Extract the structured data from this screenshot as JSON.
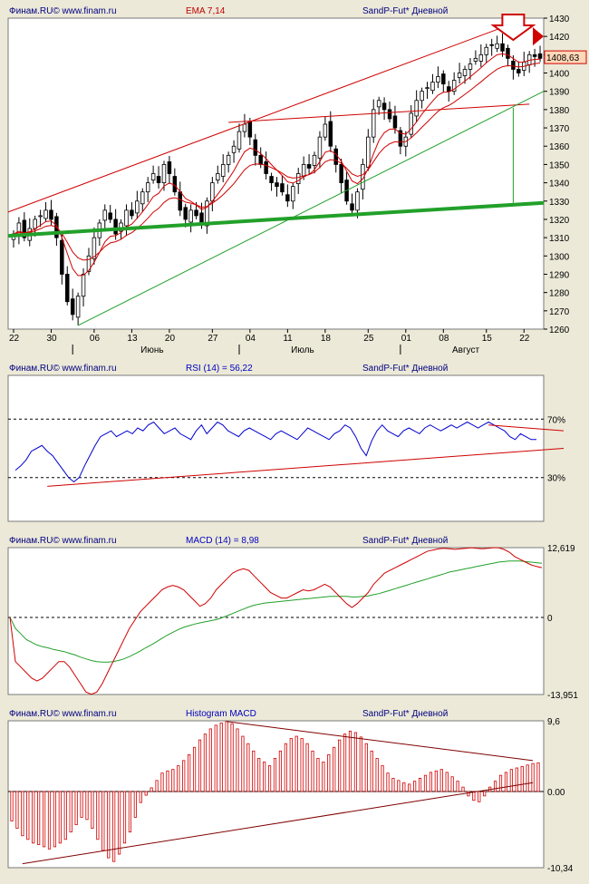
{
  "theme": {
    "panel_bg": "#ece9d8",
    "plot_bg": "#ffffff",
    "axis": "#000000",
    "candle": "#000000",
    "red_line": "#d00000",
    "green_line": "#22a02a",
    "blue_line": "#0000d0",
    "label_dark": "#000080",
    "label_red": "#c00000",
    "label_blue": "#0000c0",
    "price_tag_bg": "#ffd8b8",
    "arrow_fill": "#ffffff"
  },
  "panels": {
    "price": {
      "provider": "Финам.RU© www.finam.ru",
      "indicator": "EMA 7,14",
      "instrument": "SandP-Fut* Дневной",
      "y_ticks": [
        1430,
        1420,
        1410,
        1400,
        1390,
        1380,
        1370,
        1360,
        1350,
        1340,
        1330,
        1320,
        1310,
        1300,
        1290,
        1280,
        1270,
        1260
      ],
      "last_price": "1408,63",
      "day_labels": [
        "22",
        "30",
        "06",
        "13",
        "20",
        "27",
        "04",
        "11",
        "18",
        "25",
        "01",
        "08",
        "15",
        "22"
      ],
      "month_labels": [
        "Июнь",
        "Июль",
        "Август"
      ]
    },
    "rsi": {
      "provider": "Финам.RU© www.finam.ru",
      "indicator": "RSI (14) = 56,22",
      "instrument": "SandP-Fut* Дневной",
      "levels": [
        "70%",
        "30%"
      ]
    },
    "macd": {
      "provider": "Финам.RU© www.finam.ru",
      "indicator": "MACD (14) = 8,98",
      "instrument": "SandP-Fut* Дневной",
      "labels": [
        "12,619",
        "0",
        "-13,951"
      ]
    },
    "hist": {
      "provider": "Финам.RU© www.finam.ru",
      "indicator": "Histogram MACD",
      "instrument": "SandP-Fut* Дневной",
      "labels": [
        "9,6",
        "0.00",
        "-10,34"
      ]
    }
  },
  "chart_data": [
    {
      "type": "candlestick",
      "day_ticks": [
        "22",
        "30",
        "06",
        "13",
        "20",
        "27",
        "04",
        "11",
        "18",
        "25",
        "01",
        "08",
        "15",
        "22"
      ],
      "months": [
        "Июнь",
        "Июль",
        "Август"
      ],
      "ylim": [
        1260,
        1430
      ],
      "close": [
        1312,
        1318,
        1310,
        1315,
        1320,
        1322,
        1325,
        1320,
        1310,
        1290,
        1275,
        1268,
        1278,
        1290,
        1300,
        1310,
        1318,
        1325,
        1320,
        1312,
        1318,
        1325,
        1322,
        1330,
        1335,
        1340,
        1345,
        1340,
        1350,
        1345,
        1335,
        1325,
        1320,
        1325,
        1322,
        1318,
        1330,
        1340,
        1345,
        1350,
        1355,
        1360,
        1368,
        1372,
        1365,
        1355,
        1350,
        1345,
        1340,
        1338,
        1335,
        1330,
        1338,
        1345,
        1350,
        1348,
        1355,
        1365,
        1372,
        1360,
        1350,
        1340,
        1330,
        1325,
        1335,
        1350,
        1365,
        1380,
        1385,
        1380,
        1375,
        1370,
        1360,
        1365,
        1378,
        1385,
        1390,
        1392,
        1395,
        1398,
        1394,
        1390,
        1396,
        1400,
        1402,
        1405,
        1408,
        1410,
        1414,
        1415,
        1416,
        1412,
        1408,
        1402,
        1400,
        1406,
        1410,
        1409,
        1408
      ],
      "ema_fast_label": "EMA 7",
      "ema_slow_label": "EMA 14",
      "last": 1408.63
    },
    {
      "type": "line",
      "ylim": [
        0,
        100
      ],
      "levels": [
        70,
        30
      ],
      "values": [
        35,
        38,
        42,
        48,
        50,
        52,
        48,
        45,
        40,
        35,
        30,
        27,
        30,
        38,
        45,
        52,
        58,
        60,
        62,
        58,
        60,
        62,
        60,
        64,
        62,
        66,
        68,
        64,
        60,
        62,
        64,
        60,
        58,
        56,
        62,
        66,
        60,
        64,
        68,
        66,
        62,
        60,
        58,
        62,
        64,
        62,
        60,
        58,
        56,
        60,
        62,
        60,
        58,
        56,
        60,
        64,
        62,
        60,
        58,
        56,
        60,
        62,
        66,
        64,
        58,
        50,
        45,
        55,
        62,
        66,
        62,
        60,
        58,
        62,
        64,
        62,
        60,
        64,
        66,
        64,
        62,
        64,
        66,
        64,
        66,
        68,
        66,
        64,
        66,
        68,
        66,
        64,
        62,
        58,
        56,
        60,
        58,
        56,
        56
      ]
    },
    {
      "type": "line",
      "ylim": [
        -13.951,
        12.619
      ],
      "macd": [
        0,
        -8,
        -9,
        -10,
        -11,
        -11.5,
        -11,
        -10,
        -9,
        -8,
        -8,
        -9,
        -10.5,
        -12,
        -13.5,
        -13.9,
        -13.5,
        -12,
        -10,
        -8,
        -6,
        -4,
        -2,
        -0.5,
        1,
        2,
        3,
        4,
        5,
        5.5,
        5.8,
        5.5,
        5,
        4,
        3,
        2,
        2.5,
        3.5,
        5,
        6,
        7,
        8,
        8.5,
        8.8,
        8.5,
        7.5,
        6.5,
        5.5,
        4.5,
        4,
        3.5,
        3.5,
        4,
        4.5,
        5,
        4.8,
        5,
        5.5,
        6,
        5.5,
        4.5,
        3.5,
        2.5,
        1.8,
        2.5,
        3.5,
        4.5,
        6,
        7,
        8,
        8.5,
        9,
        9.5,
        10,
        10.5,
        11,
        11.5,
        12,
        12.2,
        12.4,
        12.5,
        12.4,
        12.3,
        12.4,
        12.5,
        12.6,
        12.5,
        12.4,
        12.5,
        12.6,
        12.6,
        12.3,
        11.8,
        11,
        10.5,
        10,
        9.5,
        9.2,
        9
      ],
      "signal": [
        0,
        -2,
        -3,
        -4,
        -4.5,
        -5,
        -5.3,
        -5.5,
        -5.8,
        -6,
        -6.2,
        -6.5,
        -6.8,
        -7.2,
        -7.5,
        -7.8,
        -8,
        -8.1,
        -8.1,
        -8,
        -7.8,
        -7.5,
        -7.1,
        -6.6,
        -6.1,
        -5.5,
        -5,
        -4.4,
        -3.8,
        -3.2,
        -2.7,
        -2.2,
        -1.8,
        -1.5,
        -1.2,
        -1,
        -0.8,
        -0.6,
        -0.4,
        -0.1,
        0.3,
        0.7,
        1.1,
        1.5,
        1.9,
        2.2,
        2.4,
        2.6,
        2.7,
        2.8,
        2.9,
        3,
        3.1,
        3.2,
        3.3,
        3.4,
        3.5,
        3.6,
        3.7,
        3.8,
        3.8,
        3.8,
        3.8,
        3.7,
        3.7,
        3.8,
        3.9,
        4.1,
        4.3,
        4.6,
        4.9,
        5.2,
        5.5,
        5.8,
        6.1,
        6.4,
        6.7,
        7,
        7.3,
        7.6,
        7.9,
        8.2,
        8.4,
        8.6,
        8.8,
        9,
        9.2,
        9.4,
        9.6,
        9.8,
        10,
        10.1,
        10.2,
        10.2,
        10.2,
        10.1,
        10,
        9.9,
        9.8
      ]
    },
    {
      "type": "bar",
      "ylim": [
        -10.34,
        9.6
      ],
      "values": [
        -4,
        -5,
        -6,
        -6.5,
        -7,
        -7.2,
        -7.5,
        -7.8,
        -7.5,
        -7,
        -6.5,
        -5.5,
        -4.5,
        -3.5,
        -3.8,
        -5,
        -6.5,
        -8,
        -9,
        -9.5,
        -8.5,
        -7,
        -5.5,
        -3.5,
        -1.5,
        -0.5,
        0.5,
        1.5,
        2.5,
        2.8,
        3,
        3.5,
        4.2,
        5,
        6,
        7,
        7.8,
        8.5,
        9,
        9.3,
        9.5,
        9.2,
        8.5,
        7.5,
        6.5,
        5.5,
        4.5,
        4,
        3.5,
        4.5,
        5.5,
        6.5,
        7.2,
        7.5,
        7.2,
        6.5,
        5.5,
        4.5,
        4,
        5,
        6,
        7,
        7.8,
        8.2,
        8,
        7.4,
        6.5,
        5.5,
        4.5,
        3.5,
        2.5,
        1.8,
        1.5,
        1.2,
        1,
        1.4,
        1.8,
        2.2,
        2.6,
        2.8,
        3,
        2.6,
        2,
        1.4,
        0.6,
        -0.6,
        -1.2,
        -1.4,
        -0.6,
        0.6,
        1.4,
        2.2,
        2.6,
        3,
        3.2,
        3.4,
        3.6,
        3.8,
        3.9
      ]
    }
  ]
}
